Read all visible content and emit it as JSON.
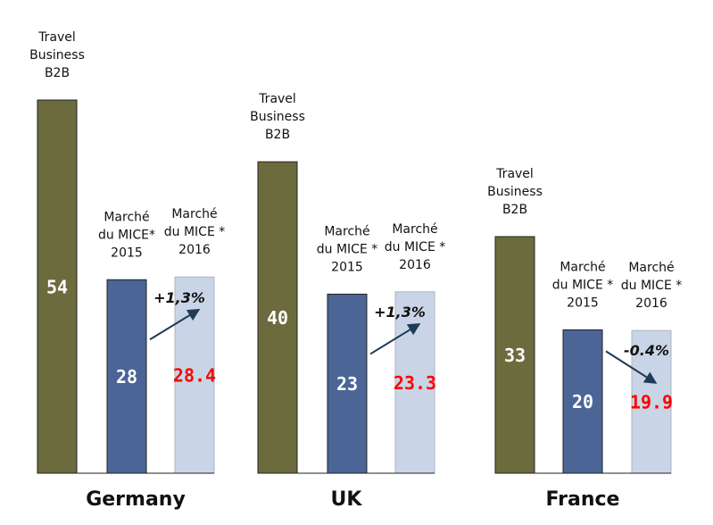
{
  "chart_data": [
    {
      "type": "bar",
      "title": "Germany",
      "categories": [
        [
          "Travel",
          "Business",
          "B2B"
        ],
        [
          "Marché",
          "du MICE*",
          "2015"
        ],
        [
          "Marché",
          "du MICE *",
          "2016"
        ]
      ],
      "values": [
        54,
        28,
        28.4
      ],
      "colors": [
        "#6b6b3e",
        "#4a6596",
        "#c9d5e6"
      ],
      "value_label_colors": [
        "#ffffff",
        "#ffffff",
        "#ff0000"
      ],
      "annotation": "+1,3%",
      "trend": "up"
    },
    {
      "type": "bar",
      "title": "UK",
      "categories": [
        [
          "Travel",
          "Business",
          "B2B"
        ],
        [
          "Marché",
          "du MICE *",
          "2015"
        ],
        [
          "Marché",
          "du MICE *",
          "2016"
        ]
      ],
      "values": [
        40,
        23,
        23.3
      ],
      "colors": [
        "#6b6b3e",
        "#4a6596",
        "#c9d5e6"
      ],
      "value_label_colors": [
        "#ffffff",
        "#ffffff",
        "#ff0000"
      ],
      "annotation": "+1,3%",
      "trend": "up"
    },
    {
      "type": "bar",
      "title": "France",
      "categories": [
        [
          "Travel",
          "Business",
          "B2B"
        ],
        [
          "Marché",
          "du MICE *",
          "2015"
        ],
        [
          "Marché",
          "du MICE *",
          "2016"
        ]
      ],
      "values": [
        33,
        20,
        19.9
      ],
      "colors": [
        "#6b6b3e",
        "#4a6596",
        "#c9d5e6"
      ],
      "value_label_colors": [
        "#ffffff",
        "#ffffff",
        "#ff0000"
      ],
      "annotation": "-0.4%",
      "trend": "down"
    }
  ]
}
